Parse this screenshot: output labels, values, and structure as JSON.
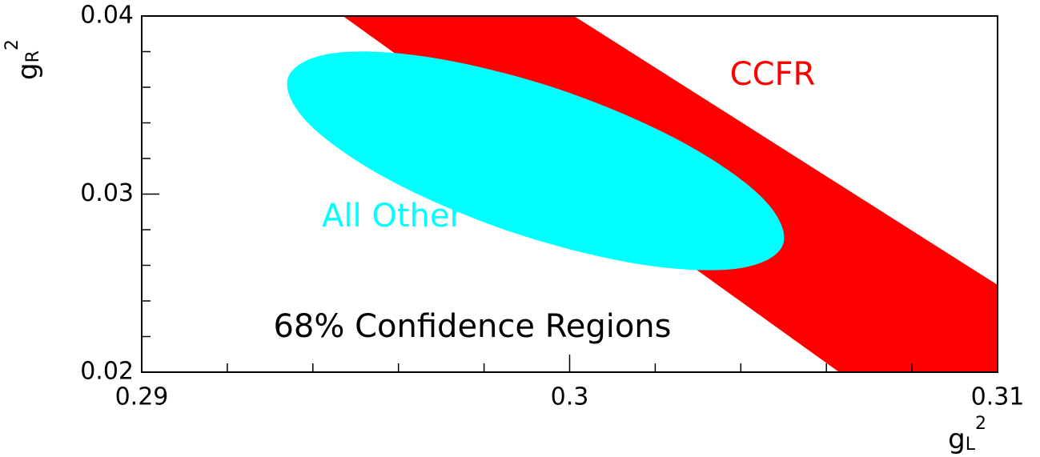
{
  "chart_data": {
    "type": "region",
    "annotation": "68% Confidence Regions",
    "x_label": {
      "base": "g",
      "sub": "L",
      "sup": "2"
    },
    "y_label": {
      "base": "g",
      "sub": "R",
      "sup": "2"
    },
    "xlim": [
      0.29,
      0.31
    ],
    "ylim": [
      0.02,
      0.04
    ],
    "xticks": [
      0.29,
      0.3,
      0.31
    ],
    "yticks": [
      0.02,
      0.03,
      0.04
    ],
    "xminorticks": [
      0.292,
      0.294,
      0.296,
      0.298,
      0.302,
      0.304,
      0.306,
      0.308
    ],
    "yminorticks": [
      0.022,
      0.024,
      0.026,
      0.028,
      0.032,
      0.034,
      0.036,
      0.038
    ],
    "series": [
      {
        "name": "CCFR",
        "color": "#ff0000",
        "shape": "polygon",
        "x": [
          0.2947,
          0.3001,
          0.31,
          0.31,
          0.3063
        ],
        "y": [
          0.04,
          0.04,
          0.0249,
          0.02,
          0.02
        ]
      },
      {
        "name": "All Other",
        "color": "#00ffff",
        "shape": "smooth",
        "x": [
          0.30499,
          0.30393,
          0.30161,
          0.29864,
          0.29583,
          0.29392,
          0.29342,
          0.29448,
          0.2968,
          0.29977,
          0.30258,
          0.30449
        ],
        "y": [
          0.02719,
          0.02582,
          0.02607,
          0.02787,
          0.03074,
          0.03391,
          0.03654,
          0.03791,
          0.03766,
          0.03587,
          0.03299,
          0.02982
        ]
      }
    ]
  }
}
